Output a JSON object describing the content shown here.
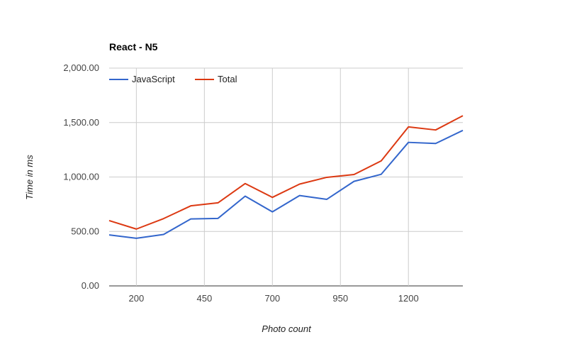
{
  "chart_data": {
    "type": "line",
    "title": "React - N5",
    "xlabel": "Photo count",
    "ylabel": "Time in ms",
    "x": [
      100,
      200,
      300,
      400,
      500,
      600,
      700,
      800,
      900,
      1000,
      1100,
      1200,
      1300,
      1400
    ],
    "x_ticks": [
      200,
      450,
      700,
      950,
      1200
    ],
    "x_tick_labels": [
      "200",
      "450",
      "700",
      "950",
      "1200"
    ],
    "xlim": [
      100,
      1400
    ],
    "y_ticks": [
      0,
      500,
      1000,
      1500,
      2000
    ],
    "y_tick_labels": [
      "0.00",
      "500.00",
      "1,000.00",
      "1,500.00",
      "2,000.00"
    ],
    "ylim": [
      0,
      2000
    ],
    "grid": true,
    "legend_position": "top-left",
    "series": [
      {
        "name": "JavaScript",
        "color": "#3366cc",
        "values": [
          468,
          437,
          472,
          615,
          620,
          824,
          680,
          830,
          795,
          960,
          1025,
          1318,
          1308,
          1428
        ]
      },
      {
        "name": "Total",
        "color": "#dc3912",
        "values": [
          600,
          522,
          618,
          735,
          763,
          940,
          813,
          935,
          997,
          1023,
          1148,
          1460,
          1432,
          1563
        ]
      }
    ]
  }
}
